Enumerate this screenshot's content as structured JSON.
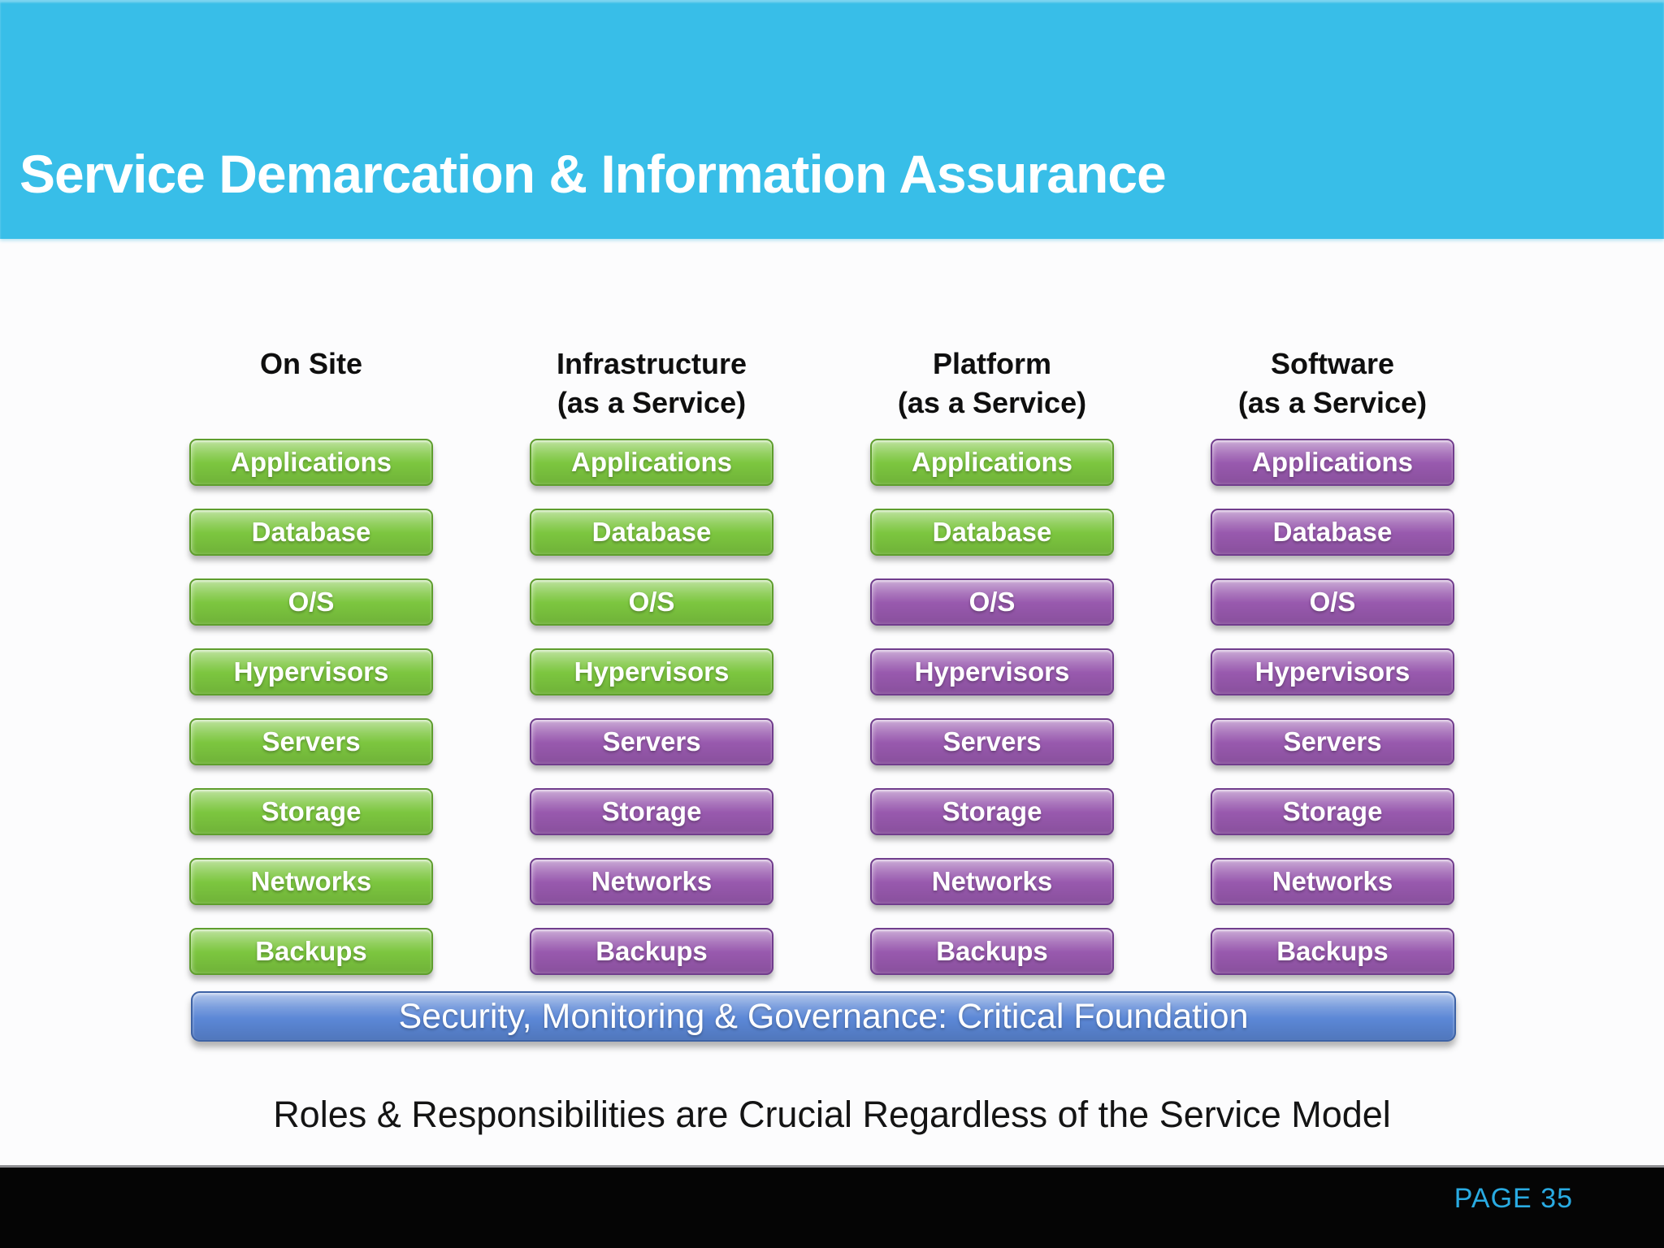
{
  "slide": {
    "title": "Service Demarcation & Information Assurance",
    "statement": "Roles & Responsibilities are Crucial Regardless of the Service Model",
    "page_label": "PAGE 35"
  },
  "banner": {
    "label": "Security, Monitoring & Governance: Critical Foundation"
  },
  "colors": {
    "header_bg": "#38bee8",
    "green_main": "#7cc63f",
    "green_border": "#5f9e2e",
    "purple_main": "#9859ae",
    "purple_border": "#713d8d",
    "banner_mid": "#5b87d6",
    "banner_border": "#3d62a5",
    "page_label_color": "#29abe2"
  },
  "columns": [
    {
      "id": "on-site",
      "title_lines": [
        "On Site"
      ],
      "items": [
        {
          "label": "Applications",
          "color": "green"
        },
        {
          "label": "Database",
          "color": "green"
        },
        {
          "label": "O/S",
          "color": "green"
        },
        {
          "label": "Hypervisors",
          "color": "green"
        },
        {
          "label": "Servers",
          "color": "green"
        },
        {
          "label": "Storage",
          "color": "green"
        },
        {
          "label": "Networks",
          "color": "green"
        },
        {
          "label": "Backups",
          "color": "green"
        }
      ]
    },
    {
      "id": "iaas",
      "title_lines": [
        "Infrastructure",
        "(as a Service)"
      ],
      "items": [
        {
          "label": "Applications",
          "color": "green"
        },
        {
          "label": "Database",
          "color": "green"
        },
        {
          "label": "O/S",
          "color": "green"
        },
        {
          "label": "Hypervisors",
          "color": "green"
        },
        {
          "label": "Servers",
          "color": "purple"
        },
        {
          "label": "Storage",
          "color": "purple"
        },
        {
          "label": "Networks",
          "color": "purple"
        },
        {
          "label": "Backups",
          "color": "purple"
        }
      ]
    },
    {
      "id": "paas",
      "title_lines": [
        "Platform",
        "(as a Service)"
      ],
      "items": [
        {
          "label": "Applications",
          "color": "green"
        },
        {
          "label": "Database",
          "color": "green"
        },
        {
          "label": "O/S",
          "color": "purple"
        },
        {
          "label": "Hypervisors",
          "color": "purple"
        },
        {
          "label": "Servers",
          "color": "purple"
        },
        {
          "label": "Storage",
          "color": "purple"
        },
        {
          "label": "Networks",
          "color": "purple"
        },
        {
          "label": "Backups",
          "color": "purple"
        }
      ]
    },
    {
      "id": "saas",
      "title_lines": [
        "Software",
        "(as a Service)"
      ],
      "items": [
        {
          "label": "Applications",
          "color": "purple"
        },
        {
          "label": "Database",
          "color": "purple"
        },
        {
          "label": "O/S",
          "color": "purple"
        },
        {
          "label": "Hypervisors",
          "color": "purple"
        },
        {
          "label": "Servers",
          "color": "purple"
        },
        {
          "label": "Storage",
          "color": "purple"
        },
        {
          "label": "Networks",
          "color": "purple"
        },
        {
          "label": "Backups",
          "color": "purple"
        }
      ]
    }
  ]
}
